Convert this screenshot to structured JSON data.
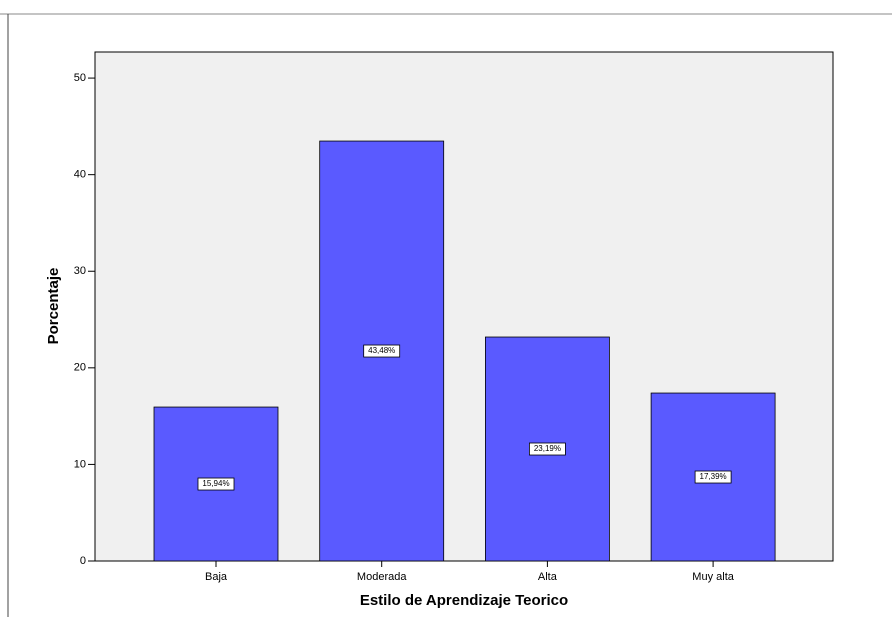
{
  "chart_data": {
    "type": "bar",
    "x_label": "Estilo de Aprendizaje Teorico",
    "y_label": "Porcentaje",
    "categories": [
      "Baja",
      "Moderada",
      "Alta",
      "Muy alta"
    ],
    "values": [
      15.94,
      43.48,
      23.19,
      17.39
    ],
    "value_labels": [
      "15,94%",
      "43,48%",
      "23,19%",
      "17,39%"
    ],
    "color": "#5a5aff",
    "ylim": [
      0,
      52.7
    ],
    "yticks": [
      0,
      10,
      20,
      30,
      40,
      50
    ],
    "grid": false
  }
}
